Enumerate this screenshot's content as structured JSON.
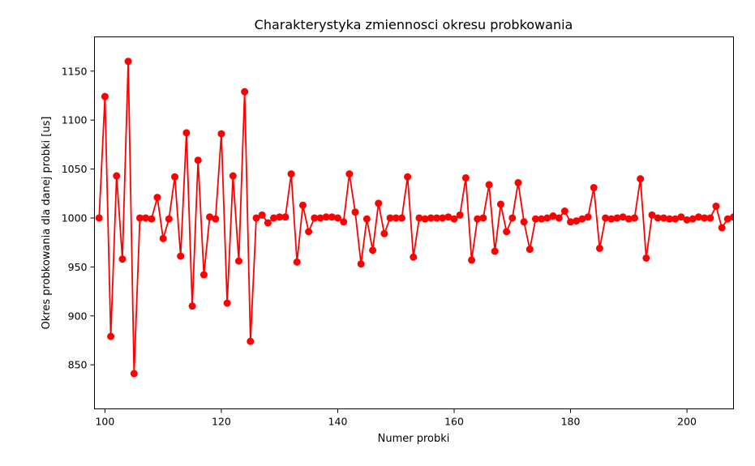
{
  "chart_data": {
    "type": "line",
    "title": "Charakterystyka zmiennosci okresu probkowania",
    "xlabel": "Numer probki",
    "ylabel": "Okres probkowania dla danej probki [us]",
    "xlim": [
      98.2,
      208
    ],
    "ylim": [
      805,
      1185
    ],
    "xticks": [
      100,
      120,
      140,
      160,
      180,
      200
    ],
    "yticks": [
      850,
      900,
      950,
      1000,
      1050,
      1100,
      1150
    ],
    "grid": false,
    "color": "#ff0000",
    "series": [
      {
        "x": [
          99,
          100,
          101,
          102,
          103,
          104,
          105,
          106,
          107,
          108,
          109,
          110,
          111,
          112,
          113,
          114,
          115,
          116,
          117,
          118,
          119,
          120,
          121,
          122,
          123,
          124,
          125,
          126,
          127,
          128,
          129,
          130,
          131,
          132,
          133,
          134,
          135,
          136,
          137,
          138,
          139,
          140,
          141,
          142,
          143,
          144,
          145,
          146,
          147,
          148,
          149,
          150,
          151,
          152,
          153,
          154,
          155,
          156,
          157,
          158,
          159,
          160,
          161,
          162,
          163,
          164,
          165,
          166,
          167,
          168,
          169,
          170,
          171,
          172,
          173,
          174,
          175,
          176,
          177,
          178,
          179,
          180,
          181,
          182,
          183,
          184,
          185,
          186,
          187,
          188,
          189,
          190,
          191,
          192,
          193,
          194,
          195,
          196,
          197,
          198,
          199,
          200,
          201,
          202,
          203,
          204,
          205,
          206,
          207,
          208
        ],
        "y": [
          1000,
          1124,
          879,
          1043,
          958,
          1160,
          841,
          1000,
          1000,
          999,
          1021,
          979,
          999,
          1042,
          961,
          1087,
          910,
          1059,
          942,
          1001,
          999,
          1086,
          913,
          1043,
          956,
          1129,
          874,
          1000,
          1003,
          995,
          1000,
          1001,
          1001,
          1045,
          955,
          1013,
          986,
          1000,
          1000,
          1001,
          1001,
          1000,
          996,
          1045,
          1006,
          953,
          999,
          967,
          1015,
          984,
          1000,
          1000,
          1000,
          1042,
          960,
          1000,
          999,
          1000,
          1000,
          1000,
          1001,
          999,
          1003,
          1041,
          957,
          999,
          1000,
          1034,
          966,
          1014,
          986,
          1000,
          1036,
          996,
          968,
          999,
          999,
          1000,
          1002,
          1000,
          1007,
          996,
          997,
          999,
          1001,
          1031,
          969,
          1000,
          999,
          1000,
          1001,
          999,
          1000,
          1040,
          959,
          1003,
          1000,
          1000,
          999,
          999,
          1001,
          998,
          999,
          1001,
          1000,
          1000,
          1012,
          990,
          999,
          1001
        ]
      }
    ]
  }
}
